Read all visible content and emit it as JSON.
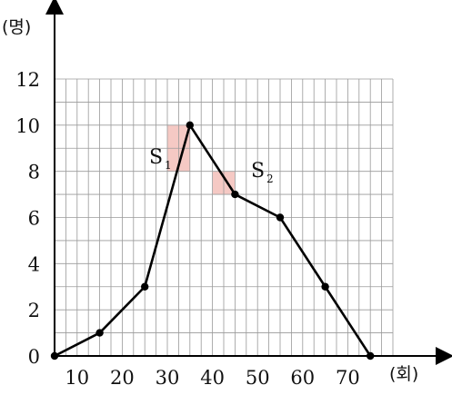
{
  "chart_data": {
    "type": "line",
    "title": "",
    "xlabel": "(회)",
    "ylabel": "(명)",
    "x_tick_labels": [
      "10",
      "20",
      "30",
      "40",
      "50",
      "60",
      "70"
    ],
    "y_tick_labels": [
      "0",
      "2",
      "4",
      "6",
      "8",
      "10",
      "12"
    ],
    "xlim": [
      5,
      80
    ],
    "ylim": [
      0,
      12
    ],
    "grid": true,
    "series": [
      {
        "x": [
          5,
          15,
          25,
          35,
          45,
          55,
          65,
          75
        ],
        "y": [
          0,
          1,
          3,
          10,
          7,
          6,
          3,
          0
        ]
      }
    ],
    "annotations": {
      "s1": {
        "letter": "S",
        "sub": "1",
        "region_x": [
          30,
          35
        ],
        "region_y": [
          8,
          10
        ]
      },
      "s2": {
        "letter": "S",
        "sub": "2",
        "region_x": [
          40,
          45
        ],
        "region_y": [
          7,
          8
        ]
      }
    },
    "colors": {
      "line": "#000000",
      "grid": "#9a9a9a",
      "shade": "#f5c9c4"
    }
  }
}
